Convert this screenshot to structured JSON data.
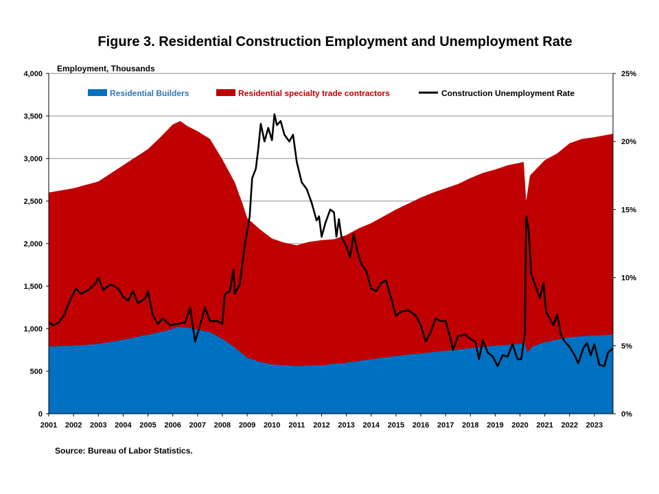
{
  "colors": {
    "builders": "#0070c0",
    "specialty": "#c00000",
    "rate": "#000000",
    "builders_text": "#2e75b6",
    "specialty_text": "#c00000"
  },
  "chart_data": {
    "type": "area",
    "title": "Figure 3. Residential Construction Employment and Unemployment Rate",
    "ylabel": "Employment, Thousands",
    "source": "Source: Bureau of Labor Statistics.",
    "ylim": [
      0,
      4000
    ],
    "y2lim": [
      0,
      25
    ],
    "xlim": [
      2001.0,
      2023.75
    ],
    "y_ticks": [
      "0",
      "500",
      "1,000",
      "1,500",
      "2,000",
      "2,500",
      "3,000",
      "3,500",
      "4,000"
    ],
    "y2_ticks": [
      "0%",
      "5%",
      "10%",
      "15%",
      "20%",
      "25%"
    ],
    "x_ticks": [
      "2001",
      "2002",
      "2003",
      "2004",
      "2005",
      "2006",
      "2007",
      "2008",
      "2009",
      "2010",
      "2011",
      "2012",
      "2013",
      "2014",
      "2015",
      "2016",
      "2017",
      "2018",
      "2019",
      "2020",
      "2021",
      "2022",
      "2023"
    ],
    "grid": "horizontal",
    "legend_position": "top",
    "series": [
      {
        "name": "Residential Builders",
        "kind": "stacked-area",
        "points": [
          [
            2001.0,
            790
          ],
          [
            2002.0,
            800
          ],
          [
            2003.0,
            820
          ],
          [
            2004.0,
            870
          ],
          [
            2005.0,
            930
          ],
          [
            2005.8,
            980
          ],
          [
            2006.2,
            1020
          ],
          [
            2006.6,
            1010
          ],
          [
            2007.0,
            990
          ],
          [
            2007.5,
            960
          ],
          [
            2008.0,
            880
          ],
          [
            2008.5,
            780
          ],
          [
            2009.0,
            660
          ],
          [
            2009.5,
            610
          ],
          [
            2010.0,
            580
          ],
          [
            2010.5,
            570
          ],
          [
            2011.0,
            560
          ],
          [
            2012.0,
            570
          ],
          [
            2013.0,
            600
          ],
          [
            2014.0,
            640
          ],
          [
            2015.0,
            680
          ],
          [
            2016.0,
            710
          ],
          [
            2017.0,
            740
          ],
          [
            2018.0,
            770
          ],
          [
            2019.0,
            800
          ],
          [
            2020.0,
            820
          ],
          [
            2020.2,
            830
          ],
          [
            2020.3,
            720
          ],
          [
            2020.5,
            790
          ],
          [
            2021.0,
            840
          ],
          [
            2022.0,
            900
          ],
          [
            2023.0,
            920
          ],
          [
            2023.75,
            930
          ]
        ]
      },
      {
        "name": "Residential specialty trade contractors",
        "kind": "stacked-area-total",
        "points": [
          [
            2001.0,
            2600
          ],
          [
            2002.0,
            2650
          ],
          [
            2003.0,
            2730
          ],
          [
            2004.0,
            2920
          ],
          [
            2005.0,
            3110
          ],
          [
            2005.5,
            3250
          ],
          [
            2006.0,
            3400
          ],
          [
            2006.3,
            3440
          ],
          [
            2006.6,
            3380
          ],
          [
            2007.0,
            3320
          ],
          [
            2007.5,
            3230
          ],
          [
            2008.0,
            2990
          ],
          [
            2008.5,
            2720
          ],
          [
            2008.8,
            2480
          ],
          [
            2009.0,
            2300
          ],
          [
            2009.5,
            2170
          ],
          [
            2010.0,
            2060
          ],
          [
            2010.5,
            2010
          ],
          [
            2011.0,
            1980
          ],
          [
            2011.5,
            2020
          ],
          [
            2012.0,
            2040
          ],
          [
            2012.5,
            2050
          ],
          [
            2013.0,
            2100
          ],
          [
            2013.5,
            2180
          ],
          [
            2014.0,
            2240
          ],
          [
            2014.5,
            2320
          ],
          [
            2015.0,
            2400
          ],
          [
            2015.5,
            2470
          ],
          [
            2016.0,
            2540
          ],
          [
            2016.5,
            2600
          ],
          [
            2017.0,
            2650
          ],
          [
            2017.5,
            2700
          ],
          [
            2018.0,
            2770
          ],
          [
            2018.5,
            2830
          ],
          [
            2019.0,
            2870
          ],
          [
            2019.5,
            2920
          ],
          [
            2020.0,
            2950
          ],
          [
            2020.15,
            2960
          ],
          [
            2020.25,
            2500
          ],
          [
            2020.4,
            2800
          ],
          [
            2021.0,
            2980
          ],
          [
            2021.5,
            3060
          ],
          [
            2022.0,
            3180
          ],
          [
            2022.5,
            3230
          ],
          [
            2023.0,
            3250
          ],
          [
            2023.75,
            3290
          ]
        ]
      },
      {
        "name": "Construction Unemployment Rate",
        "kind": "line-secondary-axis",
        "points": [
          [
            2001.0,
            6.7
          ],
          [
            2001.2,
            6.5
          ],
          [
            2001.4,
            6.7
          ],
          [
            2001.6,
            7.2
          ],
          [
            2001.9,
            8.5
          ],
          [
            2002.1,
            9.2
          ],
          [
            2002.3,
            8.8
          ],
          [
            2002.6,
            9.1
          ],
          [
            2002.9,
            9.6
          ],
          [
            2003.0,
            10.0
          ],
          [
            2003.2,
            9.1
          ],
          [
            2003.5,
            9.5
          ],
          [
            2003.8,
            9.2
          ],
          [
            2004.0,
            8.6
          ],
          [
            2004.2,
            8.3
          ],
          [
            2004.4,
            9.0
          ],
          [
            2004.6,
            8.1
          ],
          [
            2004.9,
            8.5
          ],
          [
            2005.0,
            9.0
          ],
          [
            2005.2,
            7.2
          ],
          [
            2005.4,
            6.6
          ],
          [
            2005.6,
            7.0
          ],
          [
            2005.9,
            6.5
          ],
          [
            2006.2,
            6.6
          ],
          [
            2006.5,
            6.7
          ],
          [
            2006.7,
            7.8
          ],
          [
            2006.9,
            5.3
          ],
          [
            2007.1,
            6.5
          ],
          [
            2007.3,
            7.8
          ],
          [
            2007.5,
            6.8
          ],
          [
            2007.8,
            6.8
          ],
          [
            2008.0,
            6.6
          ],
          [
            2008.1,
            8.8
          ],
          [
            2008.3,
            9.0
          ],
          [
            2008.45,
            10.6
          ],
          [
            2008.5,
            8.8
          ],
          [
            2008.7,
            9.5
          ],
          [
            2008.9,
            12.3
          ],
          [
            2009.1,
            14.5
          ],
          [
            2009.2,
            17.3
          ],
          [
            2009.35,
            18.0
          ],
          [
            2009.45,
            19.5
          ],
          [
            2009.55,
            21.3
          ],
          [
            2009.7,
            20.0
          ],
          [
            2009.85,
            21.0
          ],
          [
            2010.0,
            20.1
          ],
          [
            2010.1,
            22.0
          ],
          [
            2010.2,
            21.2
          ],
          [
            2010.35,
            21.5
          ],
          [
            2010.5,
            20.5
          ],
          [
            2010.7,
            20.0
          ],
          [
            2010.85,
            20.5
          ],
          [
            2011.0,
            18.5
          ],
          [
            2011.2,
            17.0
          ],
          [
            2011.4,
            16.5
          ],
          [
            2011.6,
            15.5
          ],
          [
            2011.8,
            14.2
          ],
          [
            2011.9,
            14.5
          ],
          [
            2012.0,
            13.0
          ],
          [
            2012.15,
            14.0
          ],
          [
            2012.35,
            15.0
          ],
          [
            2012.5,
            14.8
          ],
          [
            2012.6,
            13.0
          ],
          [
            2012.7,
            14.3
          ],
          [
            2012.8,
            13.0
          ],
          [
            2013.0,
            12.3
          ],
          [
            2013.15,
            11.5
          ],
          [
            2013.3,
            13.2
          ],
          [
            2013.45,
            11.9
          ],
          [
            2013.6,
            11.0
          ],
          [
            2013.8,
            10.5
          ],
          [
            2014.0,
            9.2
          ],
          [
            2014.2,
            9.0
          ],
          [
            2014.4,
            9.6
          ],
          [
            2014.6,
            9.8
          ],
          [
            2014.8,
            8.5
          ],
          [
            2015.0,
            7.2
          ],
          [
            2015.2,
            7.5
          ],
          [
            2015.5,
            7.6
          ],
          [
            2015.8,
            7.2
          ],
          [
            2016.0,
            6.5
          ],
          [
            2016.2,
            5.3
          ],
          [
            2016.4,
            6.0
          ],
          [
            2016.6,
            7.0
          ],
          [
            2016.8,
            6.8
          ],
          [
            2017.0,
            6.8
          ],
          [
            2017.2,
            5.5
          ],
          [
            2017.3,
            4.7
          ],
          [
            2017.5,
            5.7
          ],
          [
            2017.8,
            5.8
          ],
          [
            2018.0,
            5.5
          ],
          [
            2018.2,
            5.3
          ],
          [
            2018.35,
            4.0
          ],
          [
            2018.5,
            5.4
          ],
          [
            2018.7,
            4.5
          ],
          [
            2018.9,
            4.2
          ],
          [
            2019.1,
            3.5
          ],
          [
            2019.3,
            4.3
          ],
          [
            2019.5,
            4.2
          ],
          [
            2019.7,
            5.1
          ],
          [
            2019.9,
            4.0
          ],
          [
            2020.05,
            4.0
          ],
          [
            2020.2,
            6.0
          ],
          [
            2020.25,
            14.5
          ],
          [
            2020.35,
            13.5
          ],
          [
            2020.45,
            10.3
          ],
          [
            2020.6,
            9.5
          ],
          [
            2020.8,
            8.5
          ],
          [
            2020.95,
            9.6
          ],
          [
            2021.05,
            7.5
          ],
          [
            2021.2,
            7.0
          ],
          [
            2021.35,
            6.5
          ],
          [
            2021.5,
            7.3
          ],
          [
            2021.65,
            5.8
          ],
          [
            2021.8,
            5.3
          ],
          [
            2022.0,
            4.9
          ],
          [
            2022.2,
            4.3
          ],
          [
            2022.35,
            3.7
          ],
          [
            2022.55,
            4.8
          ],
          [
            2022.7,
            5.2
          ],
          [
            2022.85,
            4.3
          ],
          [
            2023.0,
            5.1
          ],
          [
            2023.2,
            3.6
          ],
          [
            2023.4,
            3.5
          ],
          [
            2023.55,
            4.5
          ],
          [
            2023.75,
            4.8
          ]
        ]
      }
    ]
  }
}
